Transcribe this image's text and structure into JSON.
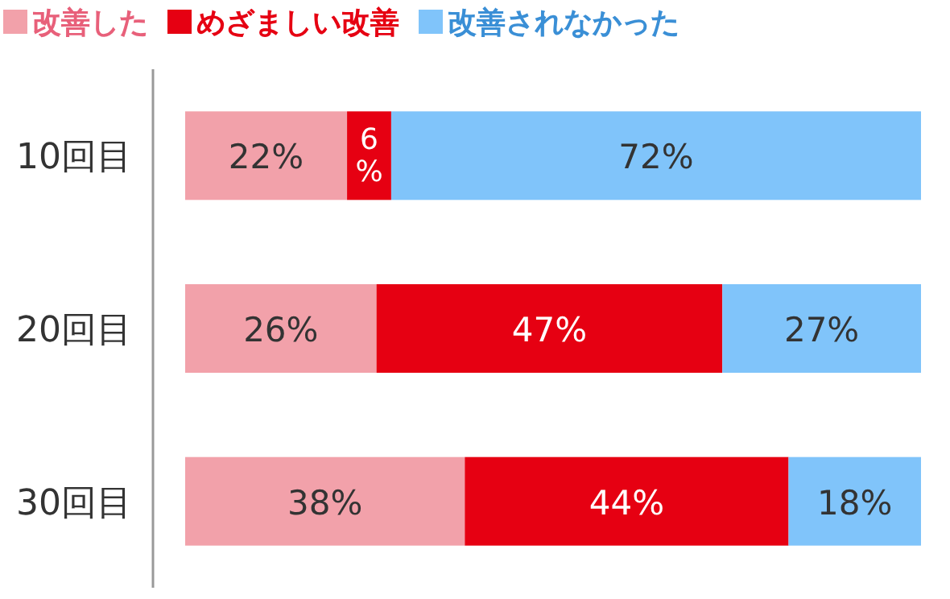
{
  "chart_data": {
    "type": "bar",
    "orientation": "horizontal",
    "stacked": true,
    "legend": "top left",
    "categories": [
      "10回目",
      "20回目",
      "30回目"
    ],
    "series": [
      {
        "name": "改善した",
        "color": "#f2a1aa",
        "values": [
          22,
          26,
          38
        ],
        "value_labels": [
          "22%",
          "26%",
          "38%"
        ]
      },
      {
        "name": "めざましい改善",
        "color": "#e60012",
        "values": [
          6,
          47,
          44
        ],
        "value_labels": [
          "6%",
          "47%",
          "44%"
        ]
      },
      {
        "name": "改善されなかった",
        "color": "#80c4fa",
        "values": [
          72,
          27,
          18
        ],
        "value_labels": [
          "72%",
          "27%",
          "18%"
        ]
      }
    ]
  }
}
